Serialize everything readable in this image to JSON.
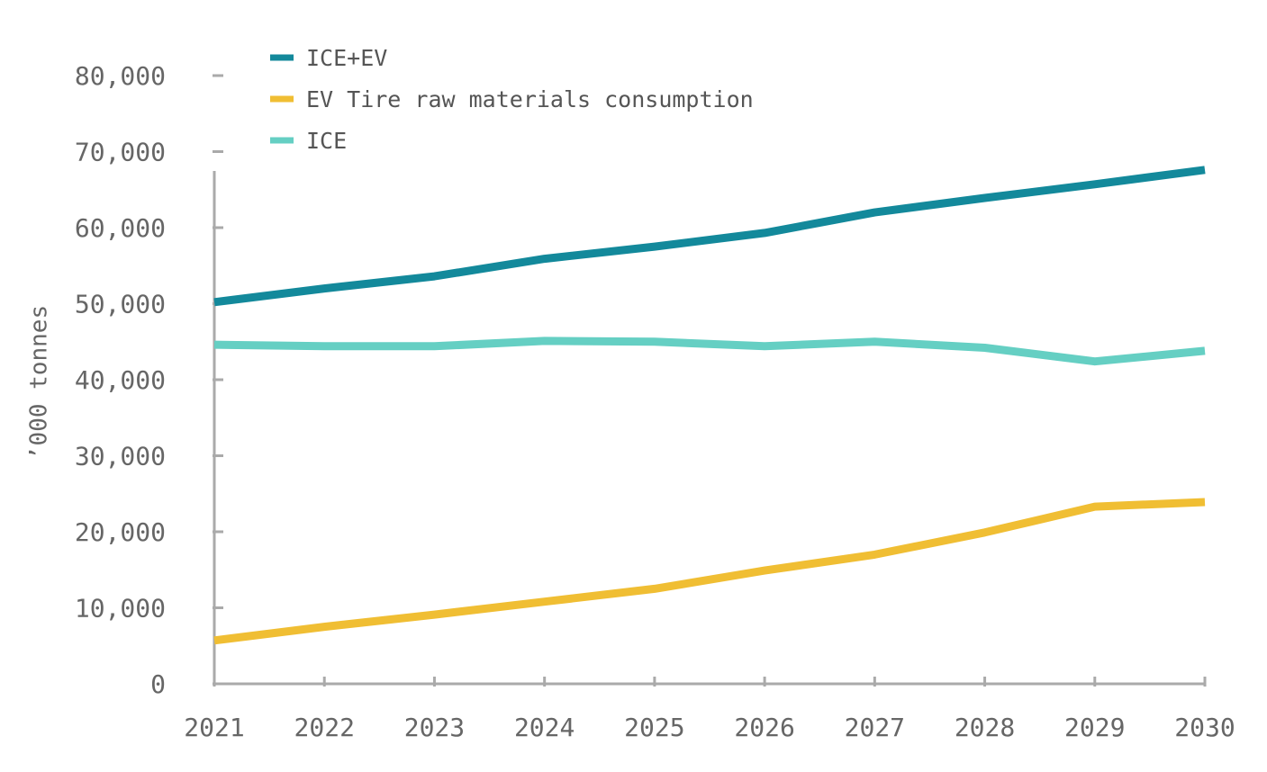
{
  "chart_data": {
    "type": "line",
    "title": "",
    "xlabel": "",
    "ylabel": "’000 tonnes",
    "x": [
      "2021",
      "2022",
      "2023",
      "2024",
      "2025",
      "2026",
      "2027",
      "2028",
      "2029",
      "2030"
    ],
    "ylim": [
      0,
      80000
    ],
    "yticks": [
      0,
      10000,
      20000,
      30000,
      40000,
      50000,
      60000,
      70000,
      80000
    ],
    "ytick_labels": [
      "0",
      "10,000",
      "20,000",
      "30,000",
      "40,000",
      "50,000",
      "60,000",
      "70,000",
      "80,000"
    ],
    "grid": false,
    "legend_position": "top-left",
    "series": [
      {
        "name": "ICE+EV",
        "color": "#13899B",
        "values": [
          50200,
          52000,
          53600,
          55900,
          57500,
          59300,
          62000,
          63900,
          65700,
          67600
        ]
      },
      {
        "name": "EV Tire raw materials consumption",
        "color": "#F0BE33",
        "values": [
          5700,
          7500,
          9100,
          10800,
          12500,
          14900,
          17000,
          19900,
          23300,
          23900
        ]
      },
      {
        "name": "ICE",
        "color": "#65CFC3",
        "values": [
          44600,
          44400,
          44400,
          45100,
          45000,
          44400,
          45000,
          44200,
          42400,
          43800
        ]
      }
    ]
  }
}
